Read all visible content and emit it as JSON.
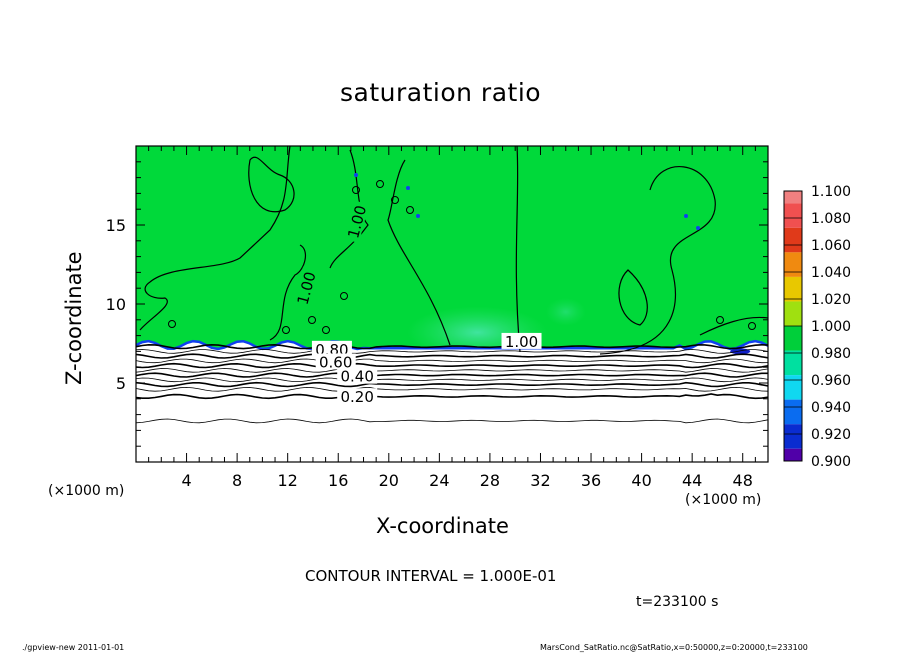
{
  "title": "saturation ratio",
  "xlabel": "X-coordinate",
  "ylabel": "Z-coordinate",
  "x_unit_left": "(×1000 m)",
  "x_unit_right": "(×1000 m)",
  "contour_interval": "CONTOUR INTERVAL = 1.000E-01",
  "time_label": "t=233100 s",
  "footer_left": "./gpview-new   2011-01-01",
  "footer_right": "MarsCond_SatRatio.nc@SatRatio,x=0:50000,z=0:20000,t=233100",
  "chart_data": {
    "type": "contour",
    "title": "saturation ratio",
    "xlabel": "X-coordinate",
    "ylabel": "Z-coordinate",
    "xlim": [
      0,
      50
    ],
    "ylim": [
      0,
      20
    ],
    "x_ticks": [
      4,
      8,
      12,
      16,
      20,
      24,
      28,
      32,
      36,
      40,
      44,
      48
    ],
    "y_ticks": [
      5,
      10,
      15
    ],
    "contour_labels": [
      {
        "text": "1.00",
        "x": 30.5,
        "z": 7.6
      },
      {
        "text": "1.00",
        "x": 17.5,
        "z": 15.2
      },
      {
        "text": "1.00",
        "x": 13.5,
        "z": 11.0
      },
      {
        "text": "0.80",
        "x": 15.5,
        "z": 7.1
      },
      {
        "text": "0.60",
        "x": 15.8,
        "z": 6.3
      },
      {
        "text": "0.40",
        "x": 17.5,
        "z": 5.4
      },
      {
        "text": "0.20",
        "x": 17.5,
        "z": 4.1
      }
    ],
    "lower_isolines_z": [
      7.3,
      7.0,
      6.7,
      6.4,
      6.1,
      5.8,
      5.5,
      5.2,
      4.9,
      4.6,
      4.15,
      2.6
    ],
    "colorbar": {
      "labels": [
        "1.100",
        "1.080",
        "1.060",
        "1.040",
        "1.020",
        "1.000",
        "0.980",
        "0.960",
        "0.940",
        "0.920",
        "0.900"
      ],
      "colors": [
        "#f08080",
        "#f05050",
        "#e03a1a",
        "#f08a10",
        "#e8c800",
        "#a0e010",
        "#00cf3a",
        "#00e0a0",
        "#10d8f0",
        "#0a6cf0",
        "#0a2cd0",
        "#5000a8"
      ]
    },
    "colors": {
      "field": "#00d93a",
      "field_light": "#37e07a",
      "field_cyan": "#55e8c0",
      "below_boundary": "#ffffff",
      "boundary_blue": "#1040f0"
    }
  }
}
